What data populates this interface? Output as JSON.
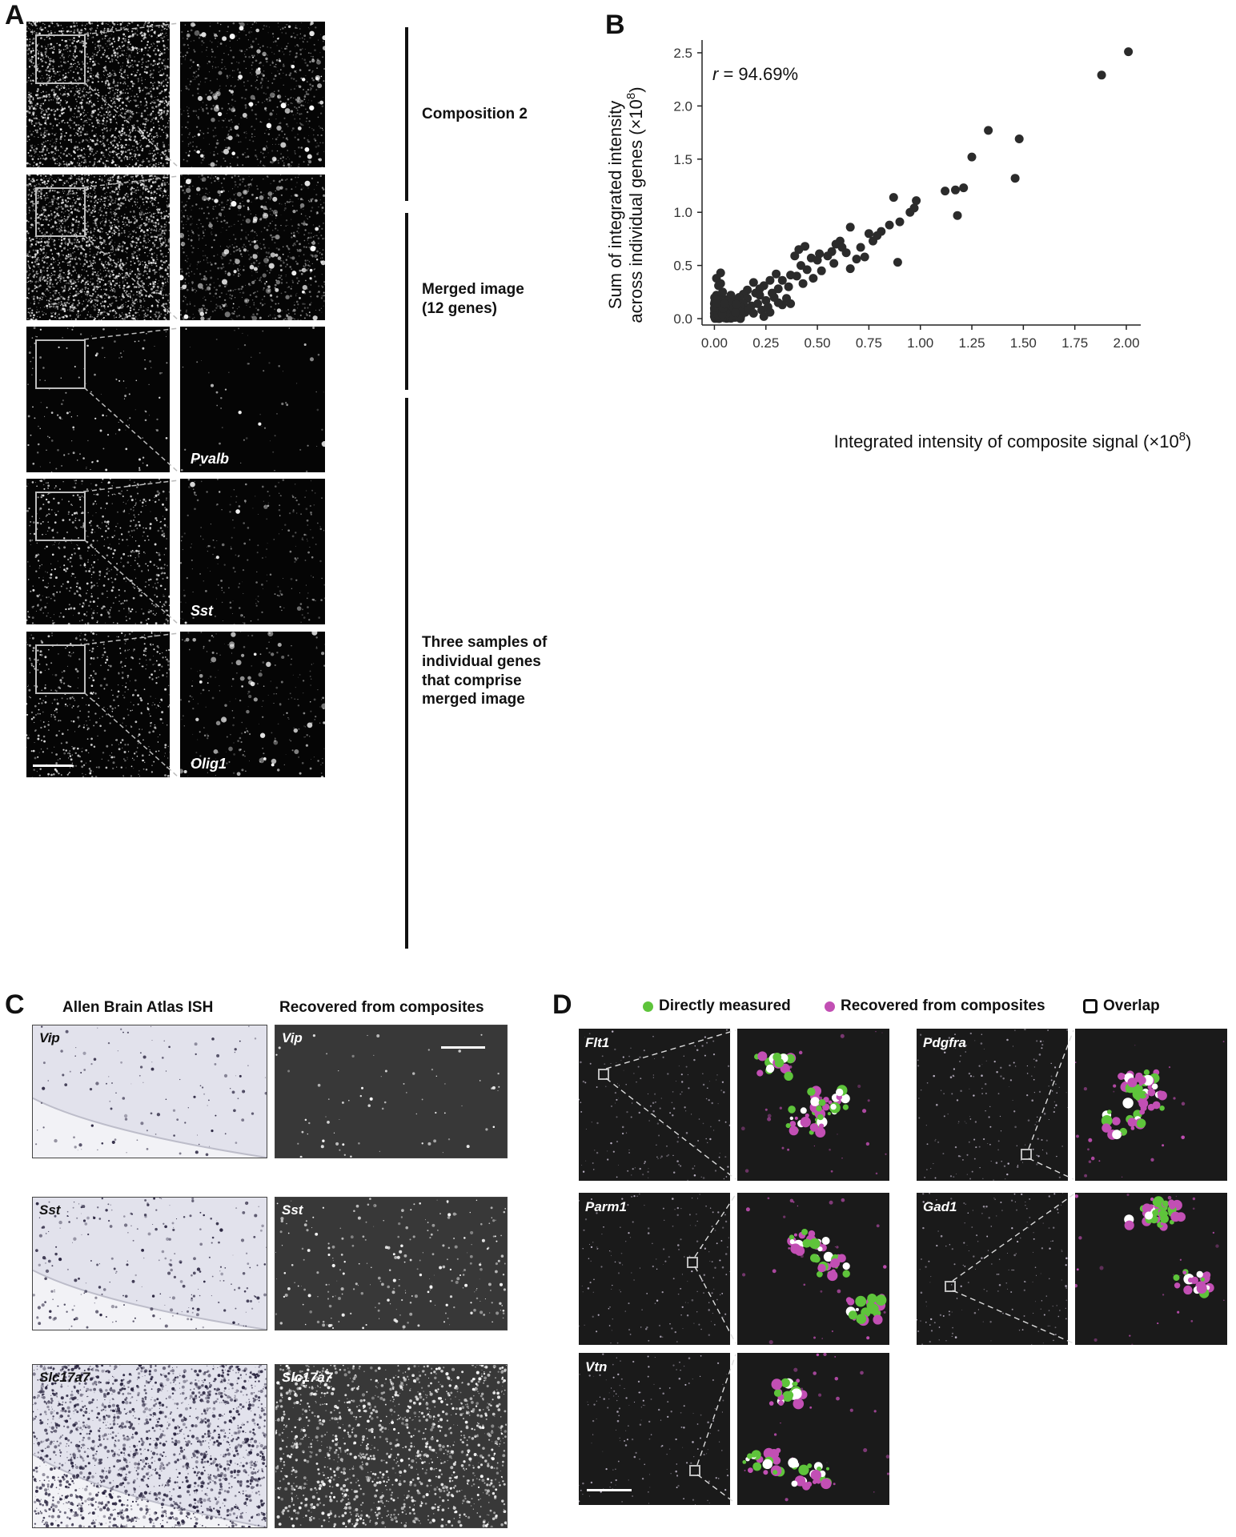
{
  "panel_letters": {
    "a": "A",
    "b": "B",
    "c": "C",
    "d": "D"
  },
  "panel_a": {
    "labels": {
      "composition": "Composition 2",
      "merged_line1": "Merged image",
      "merged_line2": "(12 genes)",
      "samples_line1": "Three samples of",
      "samples_line2": "individual genes",
      "samples_line3": "that comprise",
      "samples_line4": "merged image"
    },
    "genes": [
      "Pvalb",
      "Sst",
      "Olig1"
    ]
  },
  "panel_b": {
    "annotation_r": "r",
    "annotation_value": " = 94.69%",
    "ylabel_line1": "Sum of integrated intensity",
    "ylabel_line2": "across individual genes (×10",
    "ylabel_sup": "8",
    "ylabel_close": ")",
    "xlabel_main": "Integrated intensity of composite signal (×10",
    "xlabel_sup": "8",
    "xlabel_close": ")"
  },
  "panel_c": {
    "col1": "Allen Brain Atlas ISH",
    "col2": "Recovered from composites",
    "genes": [
      "Vip",
      "Sst",
      "Slc17a7"
    ]
  },
  "panel_d": {
    "legend": {
      "direct": "Directly measured",
      "recovered": "Recovered from composites",
      "overlap": "Overlap"
    },
    "genes": {
      "flt1": "Flt1",
      "pdgfra": "Pdgfra",
      "parm1": "Parm1",
      "gad1": "Gad1",
      "vtn": "Vtn"
    },
    "colors": {
      "direct": "#5ec43b",
      "recovered": "#c24fb4",
      "overlap": "#ffffff"
    }
  },
  "chart_data": {
    "type": "scatter",
    "title": "",
    "xlabel": "Integrated intensity of composite signal (×10^8)",
    "ylabel": "Sum of integrated intensity across individual genes (×10^8)",
    "xlim": [
      -0.06,
      2.07
    ],
    "ylim": [
      -0.06,
      2.62
    ],
    "xticks": [
      0.0,
      0.25,
      0.5,
      0.75,
      1.0,
      1.25,
      1.5,
      1.75,
      2.0
    ],
    "xticklabels": [
      "0.00",
      "0.25",
      "0.50",
      "0.75",
      "1.00",
      "1.25",
      "1.50",
      "1.75",
      "2.00"
    ],
    "yticks": [
      0.0,
      0.5,
      1.0,
      1.5,
      2.0,
      2.5
    ],
    "yticklabels": [
      "0.0",
      "0.5",
      "1.0",
      "1.5",
      "2.0",
      "2.5"
    ],
    "grid": false,
    "annotation": "r = 94.69%",
    "points": [
      [
        2.01,
        2.51
      ],
      [
        1.88,
        2.29
      ],
      [
        1.33,
        1.77
      ],
      [
        1.48,
        1.69
      ],
      [
        1.25,
        1.52
      ],
      [
        1.46,
        1.32
      ],
      [
        1.21,
        1.23
      ],
      [
        1.17,
        1.21
      ],
      [
        1.12,
        1.2
      ],
      [
        1.18,
        0.97
      ],
      [
        0.87,
        1.14
      ],
      [
        0.98,
        1.11
      ],
      [
        0.97,
        1.04
      ],
      [
        0.95,
        1.0
      ],
      [
        0.9,
        0.91
      ],
      [
        0.85,
        0.88
      ],
      [
        0.81,
        0.82
      ],
      [
        0.79,
        0.78
      ],
      [
        0.75,
        0.8
      ],
      [
        0.66,
        0.86
      ],
      [
        0.61,
        0.73
      ],
      [
        0.59,
        0.7
      ],
      [
        0.62,
        0.67
      ],
      [
        0.57,
        0.63
      ],
      [
        0.55,
        0.59
      ],
      [
        0.51,
        0.61
      ],
      [
        0.64,
        0.62
      ],
      [
        0.69,
        0.56
      ],
      [
        0.89,
        0.53
      ],
      [
        0.66,
        0.47
      ],
      [
        0.58,
        0.52
      ],
      [
        0.5,
        0.55
      ],
      [
        0.47,
        0.57
      ],
      [
        0.44,
        0.68
      ],
      [
        0.41,
        0.65
      ],
      [
        0.39,
        0.59
      ],
      [
        0.42,
        0.5
      ],
      [
        0.45,
        0.46
      ],
      [
        0.4,
        0.4
      ],
      [
        0.37,
        0.41
      ],
      [
        0.33,
        0.36
      ],
      [
        0.3,
        0.42
      ],
      [
        0.27,
        0.36
      ],
      [
        0.24,
        0.31
      ],
      [
        0.22,
        0.28
      ],
      [
        0.2,
        0.24
      ],
      [
        0.19,
        0.34
      ],
      [
        0.16,
        0.27
      ],
      [
        0.14,
        0.23
      ],
      [
        0.12,
        0.2
      ],
      [
        0.11,
        0.18
      ],
      [
        0.29,
        0.2
      ],
      [
        0.33,
        0.13
      ],
      [
        0.25,
        0.17
      ],
      [
        0.21,
        0.14
      ],
      [
        0.18,
        0.12
      ],
      [
        0.16,
        0.19
      ],
      [
        0.14,
        0.14
      ],
      [
        0.13,
        0.1
      ],
      [
        0.1,
        0.12
      ],
      [
        0.09,
        0.16
      ],
      [
        0.08,
        0.22
      ],
      [
        0.07,
        0.14
      ],
      [
        0.06,
        0.11
      ],
      [
        0.05,
        0.09
      ],
      [
        0.05,
        0.18
      ],
      [
        0.04,
        0.25
      ],
      [
        0.03,
        0.33
      ],
      [
        0.03,
        0.43
      ],
      [
        0.01,
        0.38
      ],
      [
        0.02,
        0.31
      ],
      [
        0.01,
        0.22
      ],
      [
        0.02,
        0.15
      ],
      [
        0.01,
        0.08
      ],
      [
        0.02,
        0.05
      ],
      [
        0.03,
        0.02
      ],
      [
        0.04,
        0.06
      ],
      [
        0.06,
        0.04
      ],
      [
        0.08,
        0.07
      ],
      [
        0.1,
        0.05
      ],
      [
        0.12,
        0.03
      ],
      [
        0.15,
        0.06
      ],
      [
        0.17,
        0.09
      ],
      [
        0.19,
        0.05
      ],
      [
        0.23,
        0.08
      ],
      [
        0.26,
        0.11
      ],
      [
        0.36,
        0.3
      ],
      [
        0.31,
        0.28
      ],
      [
        0.28,
        0.24
      ],
      [
        0.22,
        0.22
      ],
      [
        0.0,
        0.02
      ],
      [
        0.0,
        0.05
      ],
      [
        0.0,
        0.1
      ],
      [
        0.0,
        0.14
      ],
      [
        0.01,
        0.01
      ],
      [
        0.02,
        0.09
      ],
      [
        0.03,
        0.12
      ],
      [
        0.04,
        0.03
      ],
      [
        0.06,
        0.08
      ],
      [
        0.07,
        0.02
      ],
      [
        0.09,
        0.1
      ],
      [
        0.11,
        0.08
      ],
      [
        0.13,
        0.05
      ],
      [
        0.35,
        0.19
      ],
      [
        0.31,
        0.15
      ],
      [
        0.27,
        0.06
      ],
      [
        0.52,
        0.45
      ],
      [
        0.48,
        0.38
      ],
      [
        0.71,
        0.67
      ],
      [
        0.77,
        0.73
      ],
      [
        0.73,
        0.58
      ],
      [
        0.37,
        0.14
      ],
      [
        0.24,
        0.02
      ],
      [
        0.43,
        0.33
      ]
    ]
  }
}
